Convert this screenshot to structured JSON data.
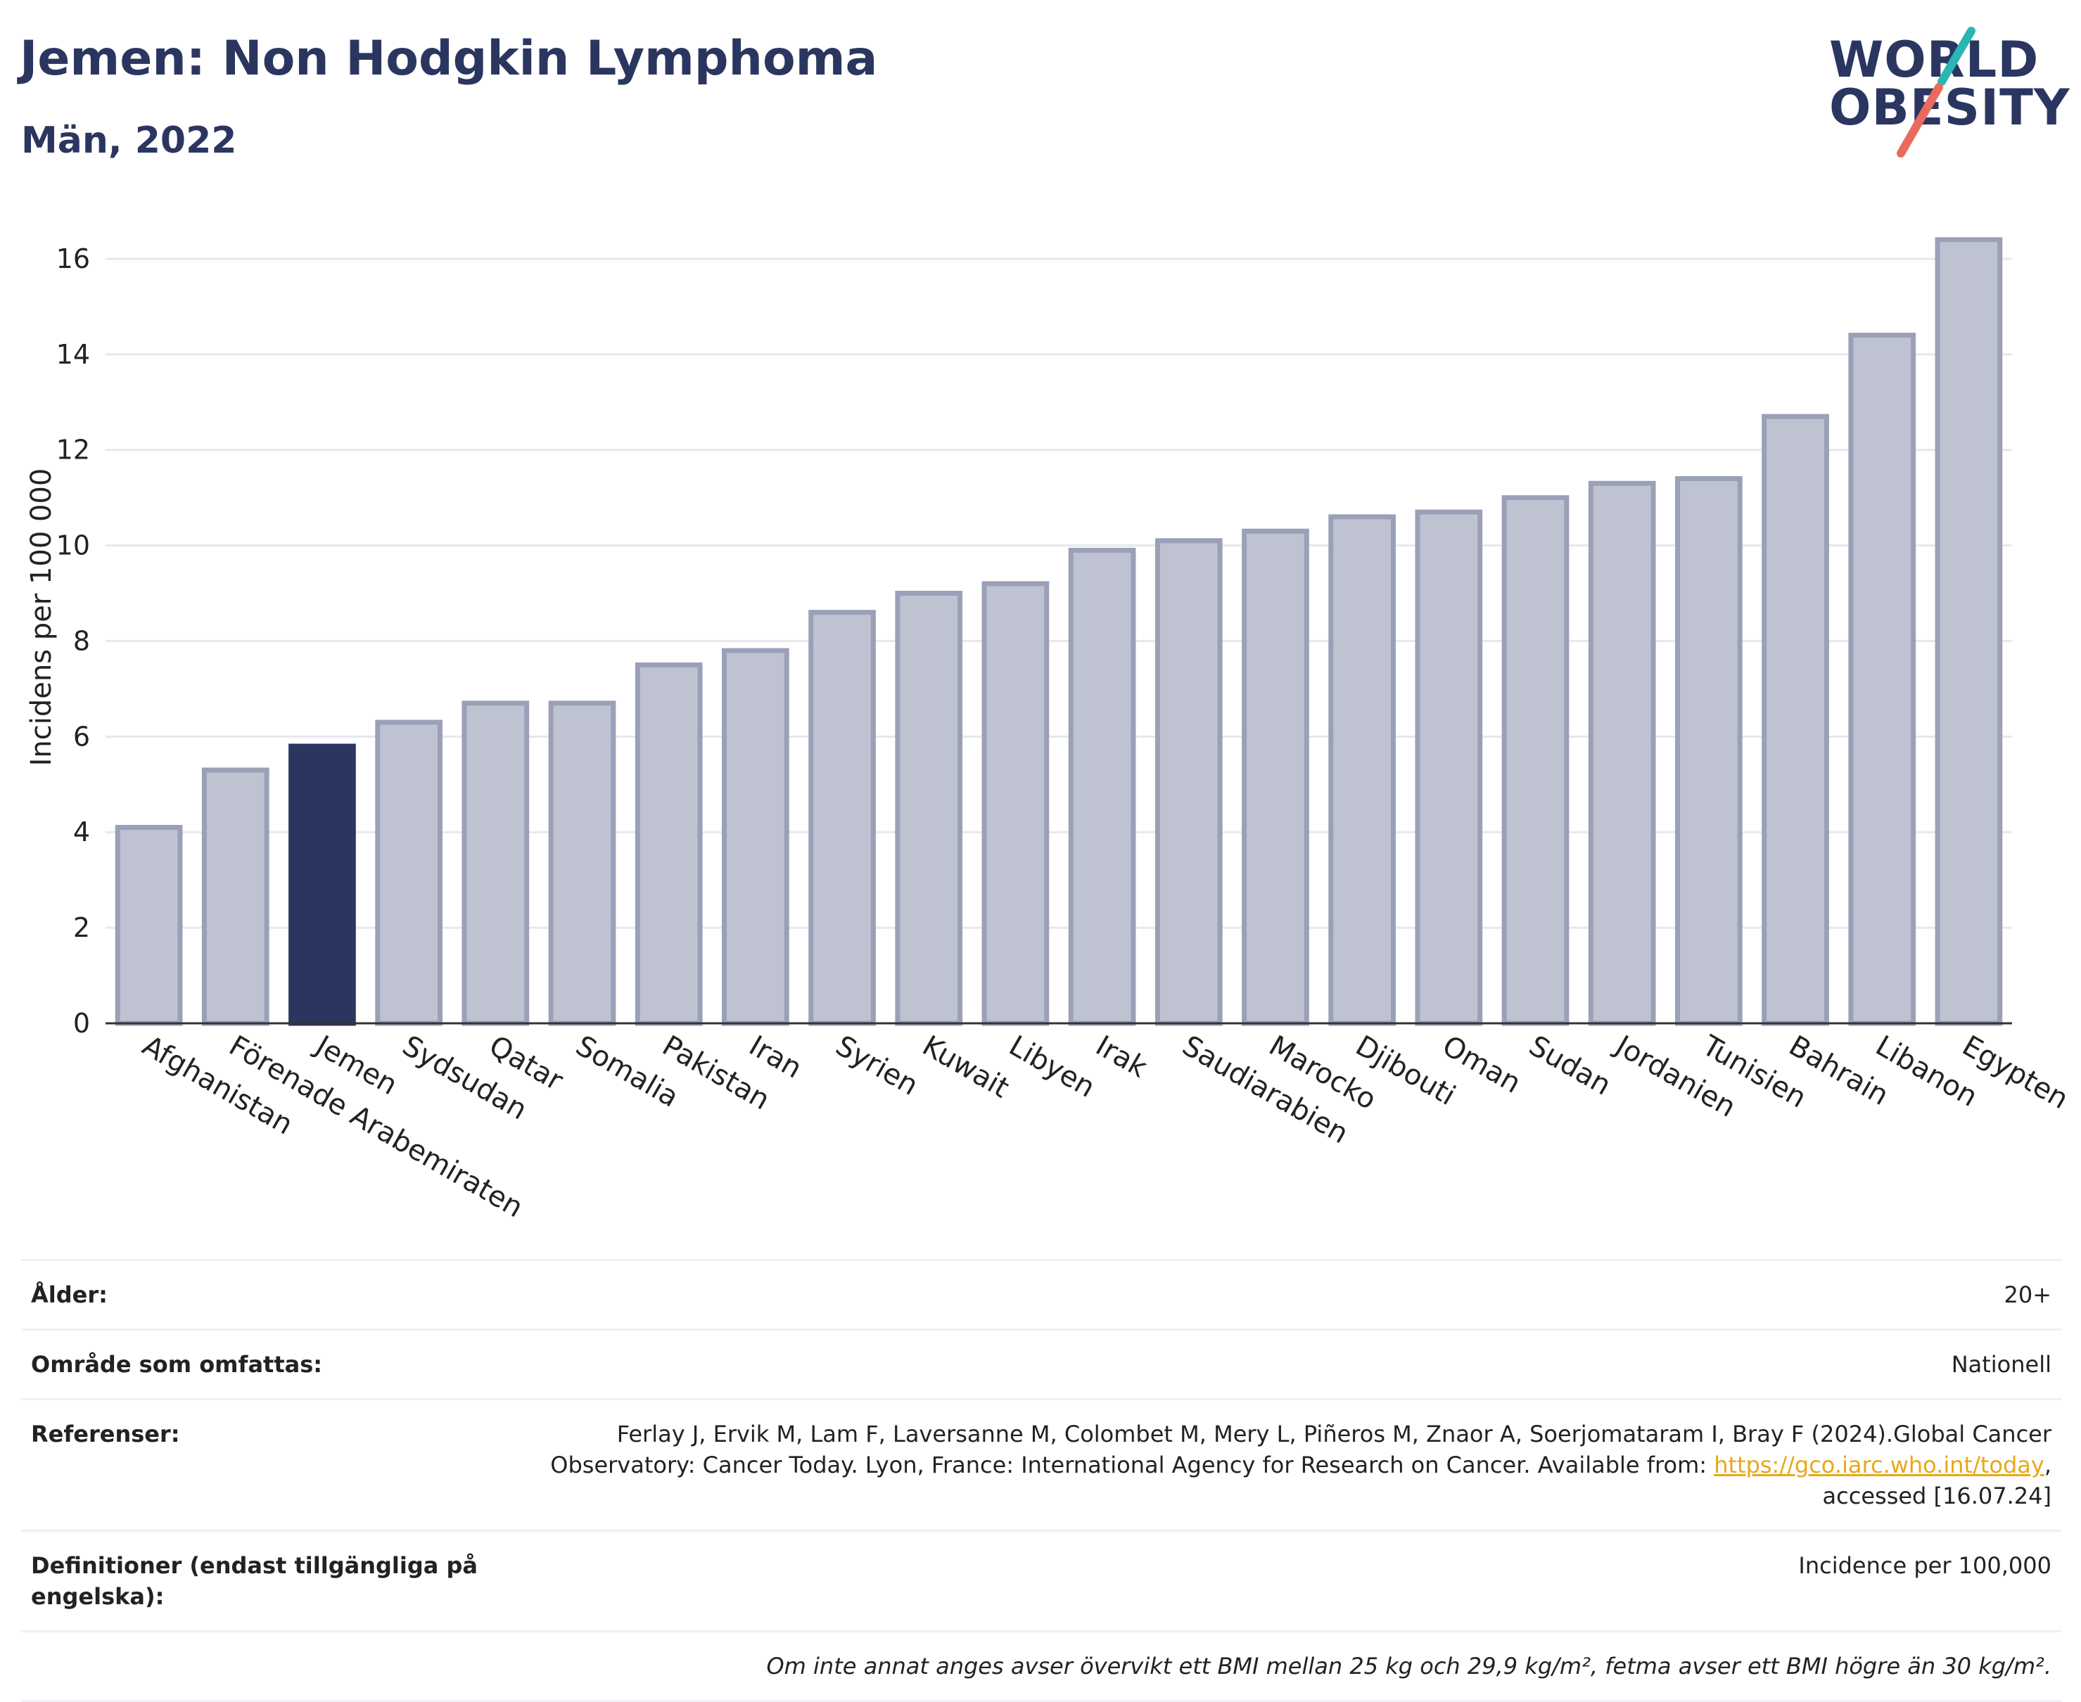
{
  "header": {
    "title": "Jemen: Non Hodgkin Lymphoma",
    "subtitle": "Män, 2022"
  },
  "logo": {
    "line1": "WORLD",
    "line2": "OBESITY"
  },
  "colors": {
    "highlight": "#2b3660",
    "bar_fill": "#bfc3d1",
    "bar_stroke": "#9aa0b8",
    "grid": "#e6e8ee",
    "logo_teal": "#2bb5b5",
    "logo_coral": "#e96b5e",
    "link": "#e8a81a"
  },
  "chart_data": {
    "type": "bar",
    "ylabel": "Incidens per 100 000",
    "ylim": [
      0,
      17
    ],
    "yticks": [
      0,
      2,
      4,
      6,
      8,
      10,
      12,
      14,
      16
    ],
    "grid": true,
    "highlight_category": "Jemen",
    "categories": [
      "Afghanistan",
      "Förenade Arabemiraten",
      "Jemen",
      "Sydsudan",
      "Qatar",
      "Somalia",
      "Pakistan",
      "Iran",
      "Syrien",
      "Kuwait",
      "Libyen",
      "Irak",
      "Saudiarabien",
      "Marocko",
      "Djibouti",
      "Oman",
      "Sudan",
      "Jordanien",
      "Tunisien",
      "Bahrain",
      "Libanon",
      "Egypten"
    ],
    "values": [
      4.1,
      5.3,
      5.8,
      6.3,
      6.7,
      6.7,
      7.5,
      7.8,
      8.6,
      9.0,
      9.2,
      9.9,
      10.1,
      10.3,
      10.6,
      10.7,
      11.0,
      11.3,
      11.4,
      12.7,
      14.4,
      16.4
    ]
  },
  "info": {
    "age_label": "Ålder:",
    "age_value": "20+",
    "area_label": "Område som omfattas:",
    "area_value": "Nationell",
    "ref_label": "Referenser:",
    "ref_text_1": "Ferlay J, Ervik M, Lam F, Laversanne M, Colombet M, Mery L, Piñeros M, Znaor A, Soerjomataram I, Bray F (2024).Global Cancer Observatory: Cancer Today. Lyon, France: International Agency for Research on Cancer. Available from: ",
    "ref_link": "https://gco.iarc.who.int/today",
    "ref_text_2": ", accessed [16.07.24]",
    "def_label": "Definitioner (endast tillgängliga på engelska):",
    "def_value": "Incidence per 100,000",
    "note": "Om inte annat anges avser övervikt ett BMI mellan 25 kg och 29,9 kg/m², fetma avser ett BMI högre än 30 kg/m²."
  }
}
